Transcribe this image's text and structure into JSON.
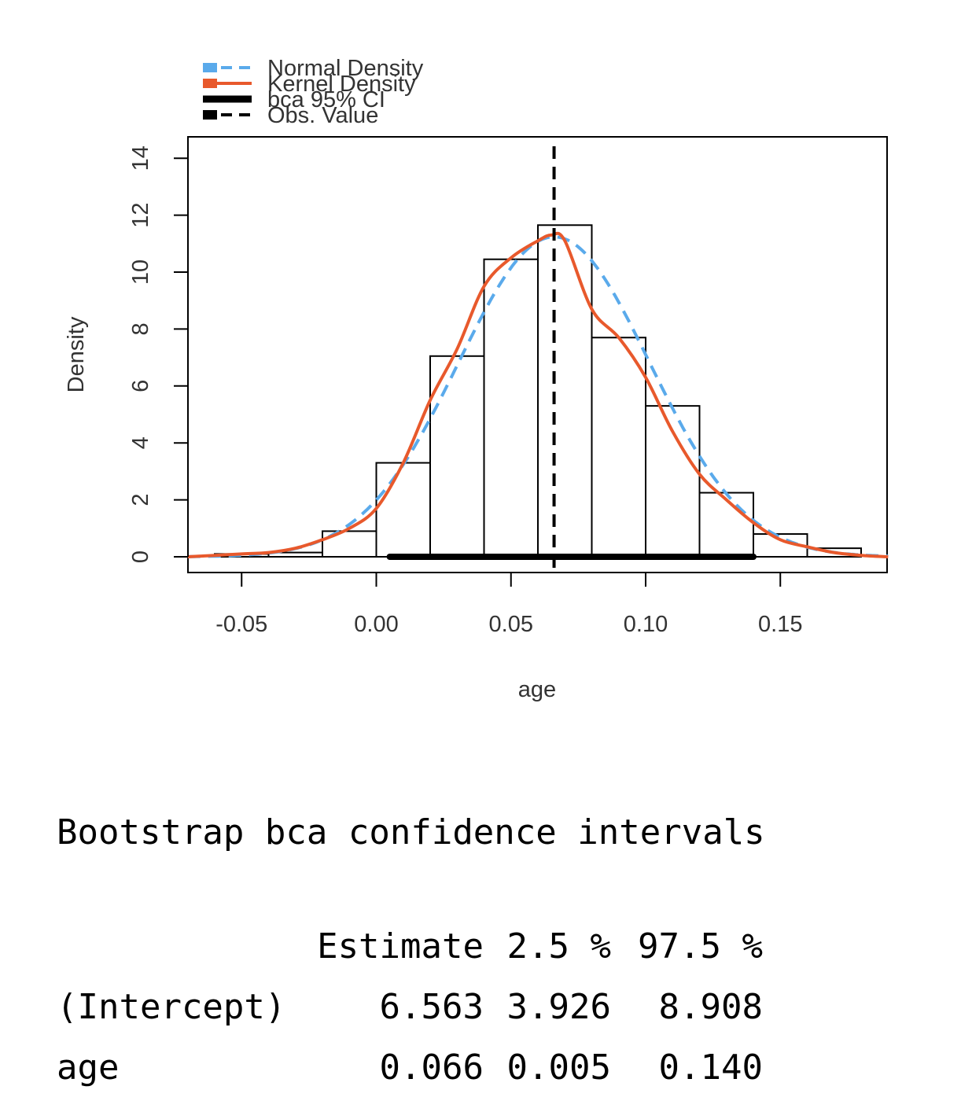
{
  "chart_data": {
    "type": "histogram",
    "xlabel": "age",
    "ylabel": "Density",
    "xlim": [
      -0.07,
      0.19
    ],
    "ylim": [
      0,
      14
    ],
    "x_ticks": [
      "-0.05",
      "0.00",
      "0.05",
      "0.10",
      "0.15"
    ],
    "x_tick_values": [
      -0.05,
      0.0,
      0.05,
      0.1,
      0.15
    ],
    "y_ticks": [
      "0",
      "2",
      "4",
      "6",
      "8",
      "10",
      "12",
      "14"
    ],
    "y_tick_values": [
      0,
      2,
      4,
      6,
      8,
      10,
      12,
      14
    ],
    "bins": [
      {
        "x0": -0.06,
        "x1": -0.04,
        "density": 0.1
      },
      {
        "x0": -0.04,
        "x1": -0.02,
        "density": 0.15
      },
      {
        "x0": -0.02,
        "x1": 0.0,
        "density": 0.9
      },
      {
        "x0": 0.0,
        "x1": 0.02,
        "density": 3.3
      },
      {
        "x0": 0.02,
        "x1": 0.04,
        "density": 7.05
      },
      {
        "x0": 0.04,
        "x1": 0.06,
        "density": 10.45
      },
      {
        "x0": 0.06,
        "x1": 0.08,
        "density": 11.65
      },
      {
        "x0": 0.08,
        "x1": 0.1,
        "density": 7.7
      },
      {
        "x0": 0.1,
        "x1": 0.12,
        "density": 5.3
      },
      {
        "x0": 0.12,
        "x1": 0.14,
        "density": 2.25
      },
      {
        "x0": 0.14,
        "x1": 0.16,
        "density": 0.8
      },
      {
        "x0": 0.16,
        "x1": 0.18,
        "density": 0.3
      }
    ],
    "normal_density": {
      "mean": 0.066,
      "sd": 0.0355,
      "color": "#5aaaeb"
    },
    "kernel_density": {
      "color": "#e8592c",
      "x": [
        -0.07,
        -0.06,
        -0.05,
        -0.04,
        -0.03,
        -0.02,
        -0.01,
        0.0,
        0.01,
        0.02,
        0.03,
        0.04,
        0.05,
        0.06,
        0.065,
        0.07,
        0.08,
        0.09,
        0.1,
        0.11,
        0.12,
        0.13,
        0.14,
        0.15,
        0.16,
        0.17,
        0.18,
        0.19
      ],
      "y": [
        0.0,
        0.05,
        0.1,
        0.15,
        0.3,
        0.6,
        1.0,
        1.7,
        3.3,
        5.5,
        7.3,
        9.5,
        10.5,
        11.1,
        11.3,
        11.1,
        8.7,
        7.7,
        6.3,
        4.4,
        2.9,
        2.0,
        1.2,
        0.6,
        0.35,
        0.15,
        0.05,
        0.0
      ]
    },
    "ci": {
      "method": "bca",
      "lower": 0.005,
      "upper": 0.14,
      "color": "#000000"
    },
    "obs_value": 0.066,
    "legend": {
      "placement": "top-left",
      "entries": [
        {
          "label": "Normal Density",
          "color": "#5aaaeb",
          "style": "dashed"
        },
        {
          "label": "Kernel Density",
          "color": "#e8592c",
          "style": "solid"
        },
        {
          "label": "bca 95% CI",
          "color": "#000000",
          "style": "thick"
        },
        {
          "label": "Obs. Value",
          "color": "#000000",
          "style": "dashed"
        }
      ]
    }
  },
  "console": {
    "heading": "Bootstrap bca confidence intervals",
    "columns": [
      "",
      "Estimate",
      "2.5 %",
      "97.5 %"
    ],
    "rows": [
      [
        "(Intercept)",
        "6.563",
        "3.926",
        "8.908"
      ],
      [
        "age",
        "0.066",
        "0.005",
        "0.140"
      ]
    ]
  }
}
